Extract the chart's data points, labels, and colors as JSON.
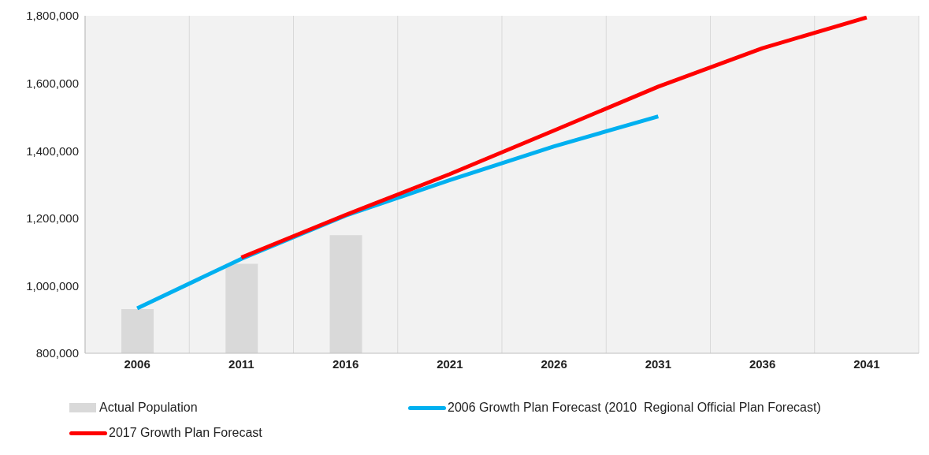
{
  "chart_data": {
    "type": "line",
    "categories": [
      "2006",
      "2011",
      "2016",
      "2021",
      "2026",
      "2031",
      "2036",
      "2041"
    ],
    "series": [
      {
        "name": "Actual Population",
        "type": "bar",
        "color": "#d9d9d9",
        "values": [
          931000,
          1065000,
          1150000,
          null,
          null,
          null,
          null,
          null
        ]
      },
      {
        "name": "2006 Growth Plan Forecast (2010  Regional Official Plan Forecast)",
        "color": "#00b0f0",
        "values": [
          933000,
          1080000,
          1208000,
          1313000,
          1413000,
          1502000,
          null,
          null
        ]
      },
      {
        "name": "2017 Growth Plan Forecast",
        "color": "#ff0000",
        "values": [
          null,
          1084000,
          1210000,
          1331000,
          1460000,
          1590000,
          1704000,
          1795000
        ]
      }
    ],
    "ylim": [
      800000,
      1800000
    ],
    "yticks": [
      {
        "value": 800000,
        "label": "800,000"
      },
      {
        "value": 1000000,
        "label": "1,000,000"
      },
      {
        "value": 1200000,
        "label": "1,200,000"
      },
      {
        "value": 1400000,
        "label": "1,400,000"
      },
      {
        "value": 1600000,
        "label": "1,600,000"
      },
      {
        "value": 1800000,
        "label": "1,800,000"
      }
    ],
    "grid": "x",
    "legend": "bottom",
    "marker": "none",
    "line_style": "solid"
  }
}
